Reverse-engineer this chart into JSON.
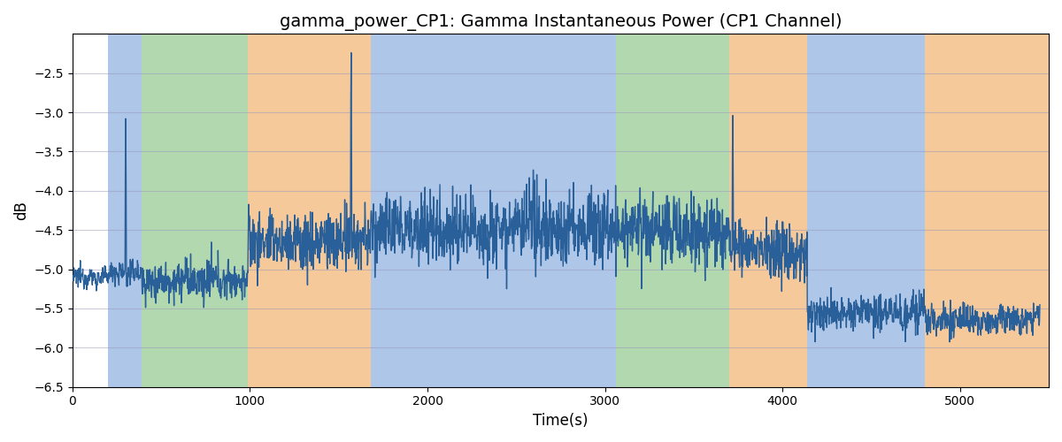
{
  "title": "gamma_power_CP1: Gamma Instantaneous Power (CP1 Channel)",
  "xlabel": "Time(s)",
  "ylabel": "dB",
  "ylim": [
    -6.5,
    -2.0
  ],
  "xlim": [
    0,
    5500
  ],
  "bg_bands": [
    {
      "xmin": 200,
      "xmax": 390,
      "color": "#aec6e8"
    },
    {
      "xmin": 390,
      "xmax": 990,
      "color": "#b2d8b0"
    },
    {
      "xmin": 990,
      "xmax": 1680,
      "color": "#f5c99a"
    },
    {
      "xmin": 1680,
      "xmax": 3060,
      "color": "#aec6e8"
    },
    {
      "xmin": 3060,
      "xmax": 3700,
      "color": "#b2d8b0"
    },
    {
      "xmin": 3700,
      "xmax": 4140,
      "color": "#f5c99a"
    },
    {
      "xmin": 4140,
      "xmax": 4800,
      "color": "#aec6e8"
    },
    {
      "xmin": 4800,
      "xmax": 5500,
      "color": "#f5c99a"
    }
  ],
  "line_color": "#2a6099",
  "line_width": 1.0,
  "grid_color": "#9999bb",
  "grid_alpha": 0.5,
  "title_fontsize": 14,
  "label_fontsize": 12,
  "yticks": [
    -6.5,
    -6.0,
    -5.5,
    -5.0,
    -4.5,
    -4.0,
    -3.5,
    -3.0,
    -2.5
  ],
  "xticks": [
    0,
    1000,
    2000,
    3000,
    4000,
    5000
  ],
  "segments": [
    {
      "tmin": 0,
      "tmax": 200,
      "mean": -5.1,
      "std": 0.12
    },
    {
      "tmin": 200,
      "tmax": 390,
      "mean": -5.05,
      "std": 0.15
    },
    {
      "tmin": 390,
      "tmax": 990,
      "mean": -5.15,
      "std": 0.22
    },
    {
      "tmin": 990,
      "tmax": 1680,
      "mean": -4.65,
      "std": 0.35
    },
    {
      "tmin": 1680,
      "tmax": 3060,
      "mean": -4.48,
      "std": 0.42
    },
    {
      "tmin": 3060,
      "tmax": 3700,
      "mean": -4.52,
      "std": 0.38
    },
    {
      "tmin": 3700,
      "tmax": 4140,
      "mean": -4.75,
      "std": 0.32
    },
    {
      "tmin": 4140,
      "tmax": 4800,
      "mean": -5.55,
      "std": 0.22
    },
    {
      "tmin": 4800,
      "tmax": 5500,
      "mean": -5.65,
      "std": 0.18
    }
  ],
  "spikes": [
    {
      "t": 300,
      "val": -3.08,
      "pre": -3.6,
      "post": -3.85
    },
    {
      "t": 1570,
      "val": -2.24,
      "pre": -2.85,
      "post": -3.15
    },
    {
      "t": 3720,
      "val": -3.04,
      "pre": -3.5,
      "post": -3.7
    }
  ]
}
